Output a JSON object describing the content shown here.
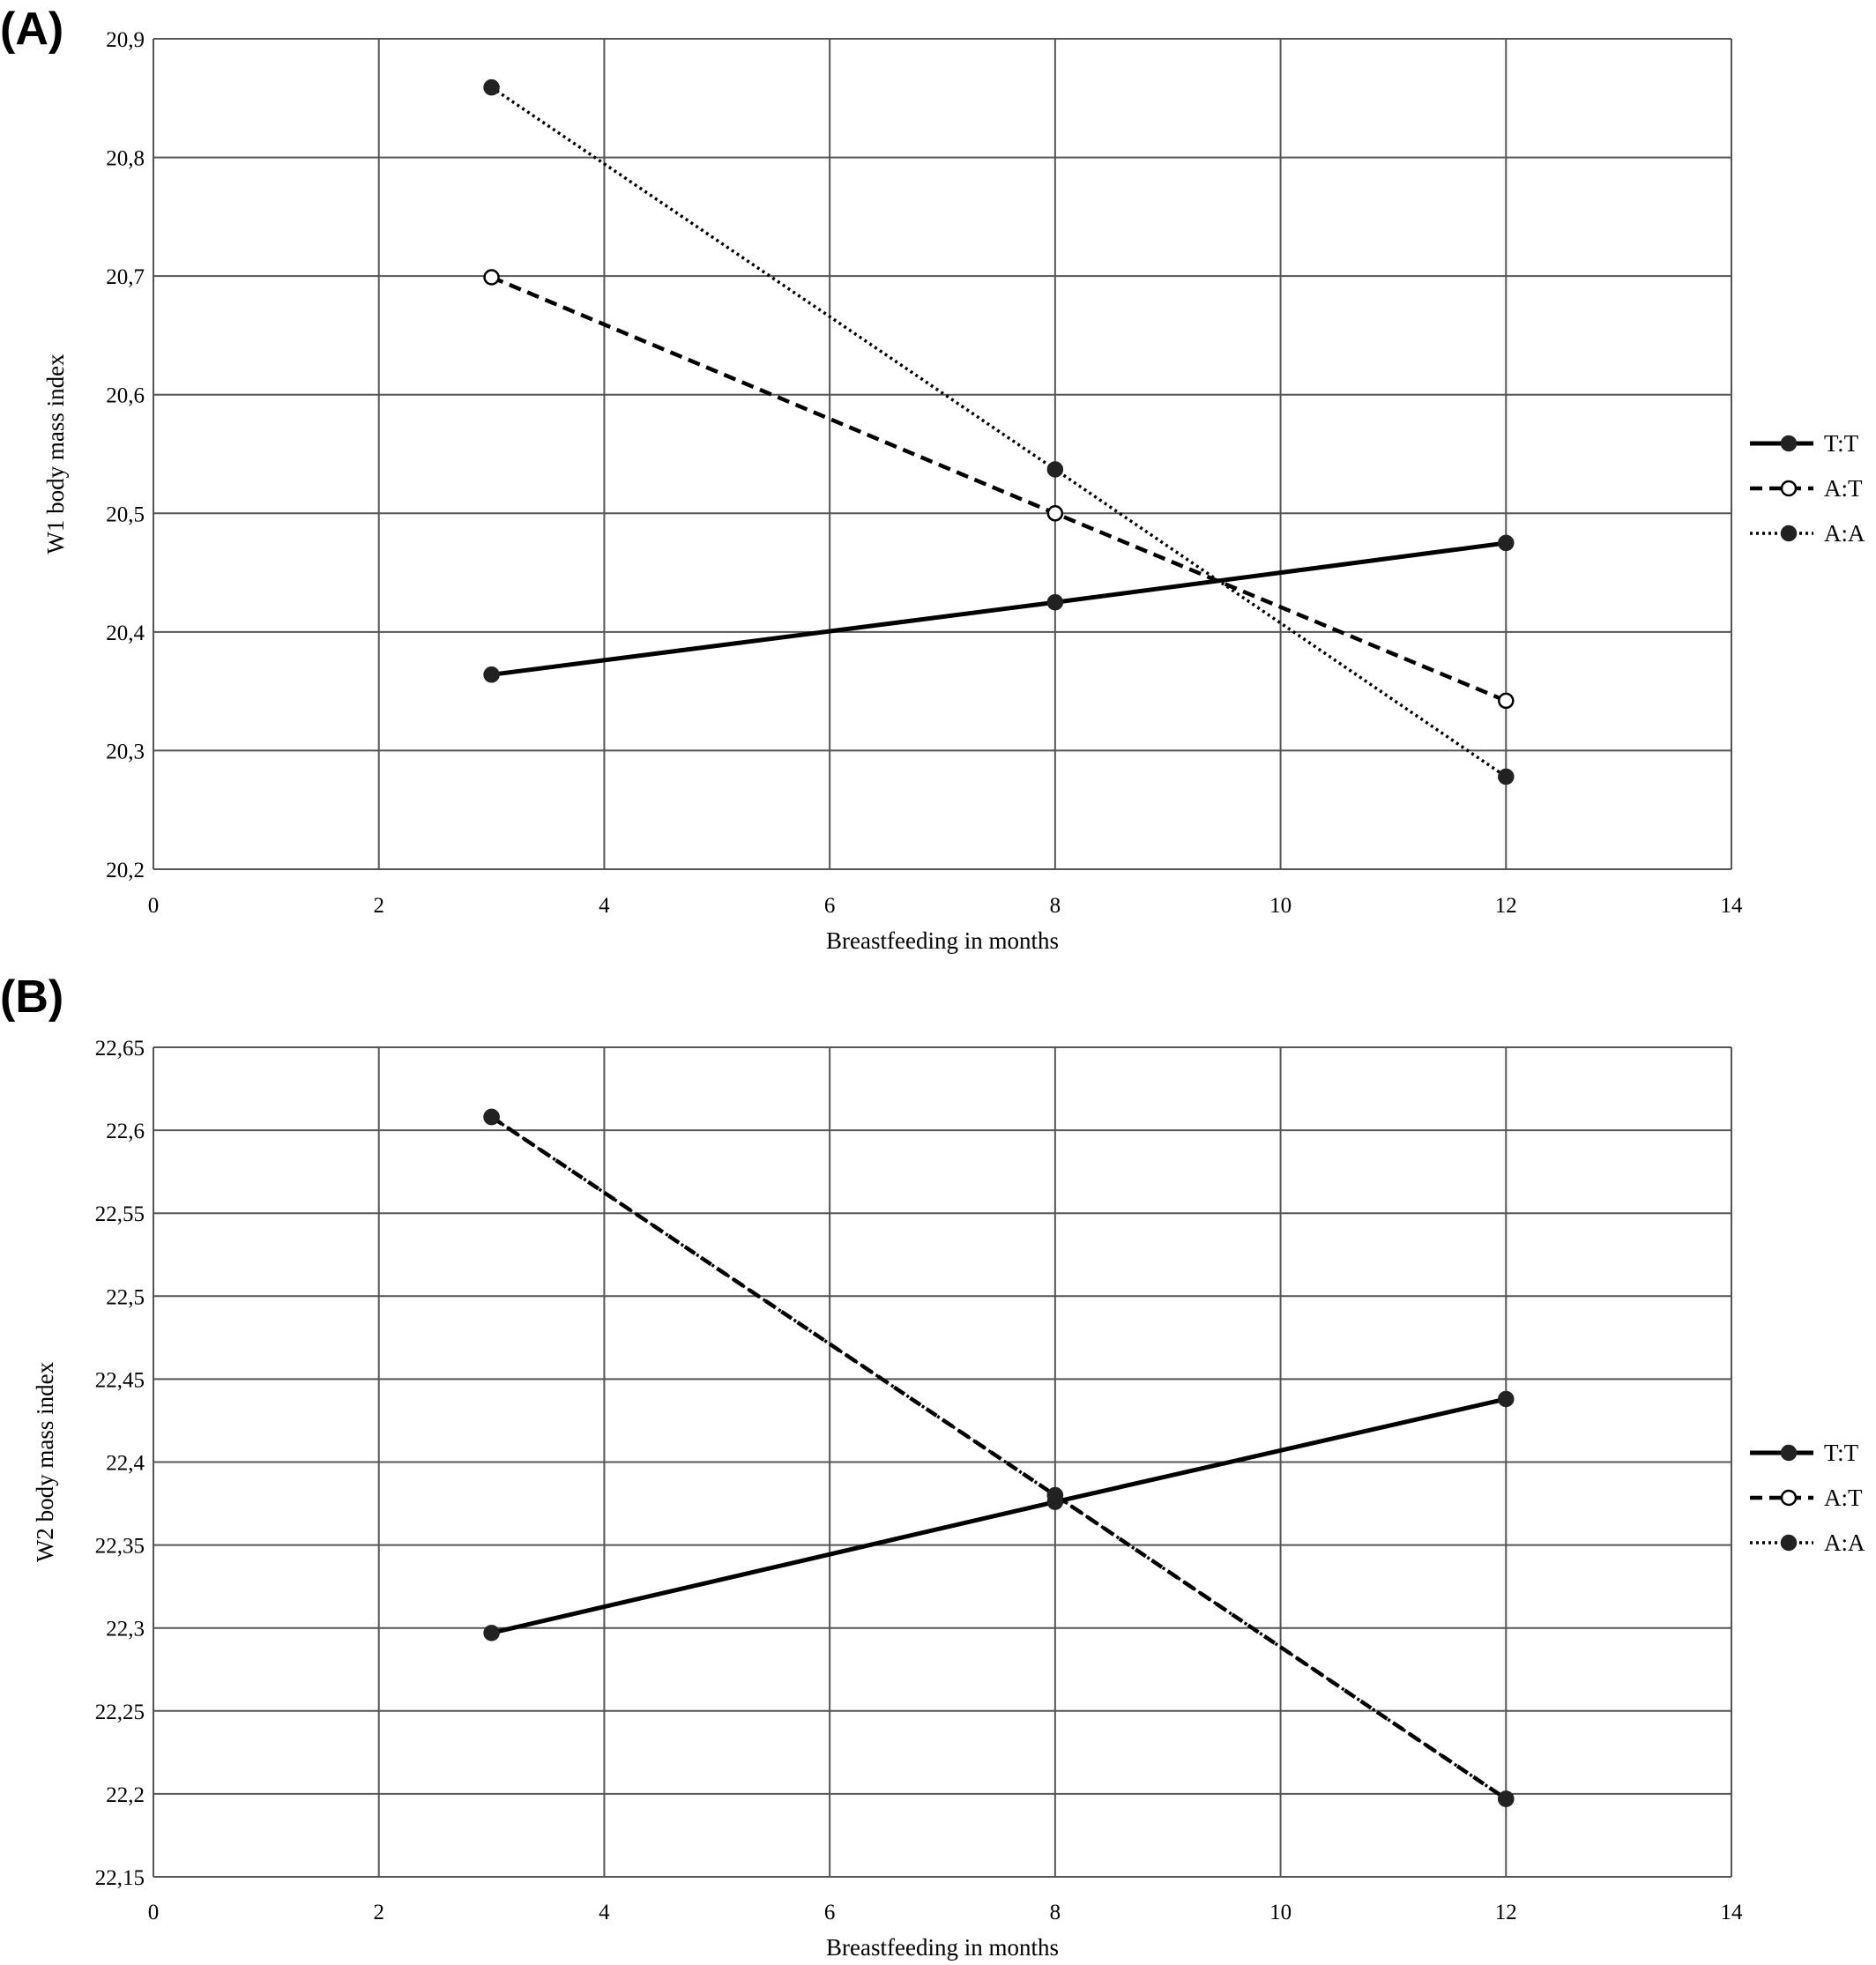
{
  "chart_data": [
    {
      "type": "line",
      "panel_label": "(A)",
      "xlabel": "Breastfeeding in months",
      "ylabel": "W1 body mass index",
      "xlim": [
        0,
        14
      ],
      "ylim": [
        20.2,
        20.9
      ],
      "x_ticks": [
        "0",
        "2",
        "4",
        "6",
        "8",
        "10",
        "12",
        "14"
      ],
      "y_ticks": [
        "20,2",
        "20,3",
        "20,4",
        "20,5",
        "20,6",
        "20,7",
        "20,8",
        "20,9"
      ],
      "grid": true,
      "legend_position": "right",
      "series": [
        {
          "name": "T:T",
          "line_style": "solid",
          "marker": "filled",
          "x": [
            3,
            8,
            12
          ],
          "y": [
            20.364,
            20.425,
            20.475
          ]
        },
        {
          "name": "A:T",
          "line_style": "dashed",
          "marker": "open",
          "x": [
            3,
            8,
            12
          ],
          "y": [
            20.699,
            20.5,
            20.342
          ]
        },
        {
          "name": "A:A",
          "line_style": "dotted",
          "marker": "filled",
          "x": [
            3,
            8,
            12
          ],
          "y": [
            20.859,
            20.537,
            20.278
          ]
        }
      ]
    },
    {
      "type": "line",
      "panel_label": "(B)",
      "xlabel": "Breastfeeding in months",
      "ylabel": "W2 body mass index",
      "xlim": [
        0,
        14
      ],
      "ylim": [
        22.15,
        22.65
      ],
      "x_ticks": [
        "0",
        "2",
        "4",
        "6",
        "8",
        "10",
        "12",
        "14"
      ],
      "y_ticks": [
        "22,15",
        "22,2",
        "22,25",
        "22,3",
        "22,35",
        "22,4",
        "22,45",
        "22,5",
        "22,55",
        "22,6",
        "22,65"
      ],
      "grid": true,
      "legend_position": "right",
      "series": [
        {
          "name": "T:T",
          "line_style": "solid",
          "marker": "filled",
          "x": [
            3,
            8,
            12
          ],
          "y": [
            22.297,
            22.376,
            22.438
          ]
        },
        {
          "name": "A:T",
          "line_style": "dashed",
          "marker": "open",
          "x": [
            3,
            8,
            12
          ],
          "y": [
            22.608,
            22.38,
            22.197
          ]
        },
        {
          "name": "A:A",
          "line_style": "dotted",
          "marker": "filled",
          "x": [
            3,
            8,
            12
          ],
          "y": [
            22.608,
            22.38,
            22.197
          ]
        }
      ]
    }
  ]
}
